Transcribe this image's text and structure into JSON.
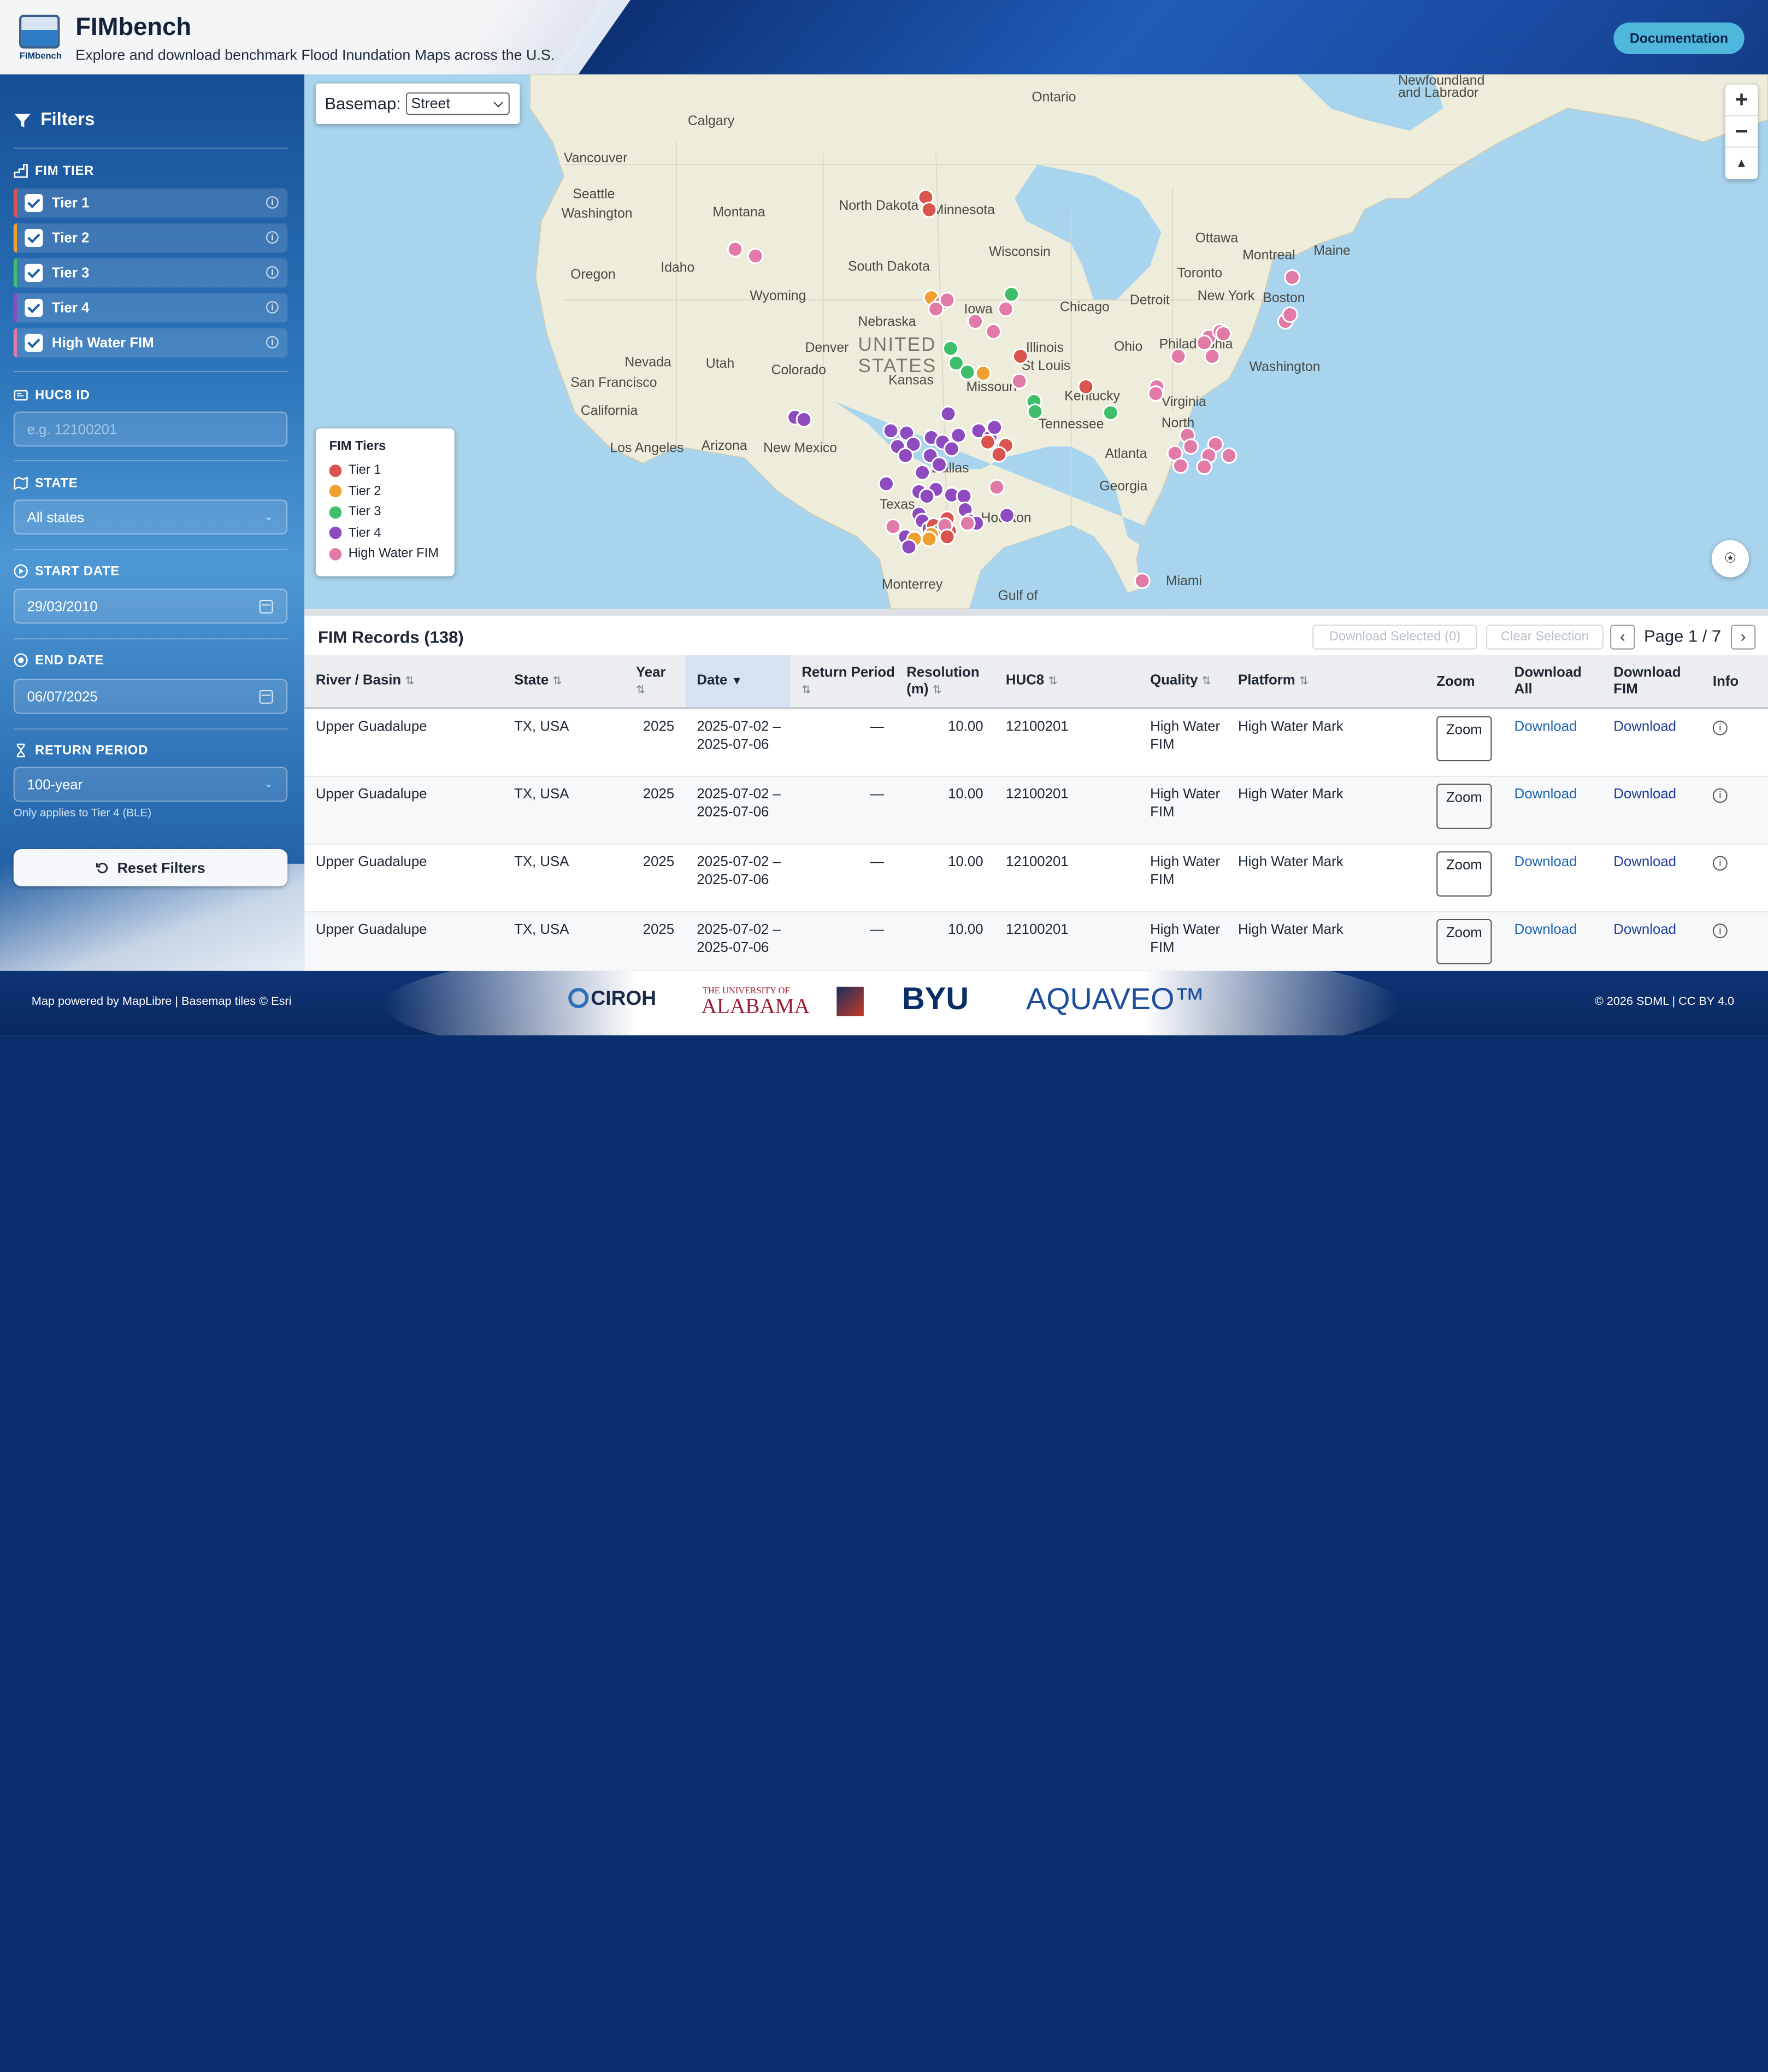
{
  "header": {
    "logo_text": "FIMbench",
    "title": "FIMbench",
    "subtitle": "Explore and download benchmark Flood Inundation Maps across the U.S.",
    "doc_button": "Documentation"
  },
  "sidebar": {
    "title": "Filters",
    "fim_tier_label": "FIM TIER",
    "tiers": [
      {
        "label": "Tier 1",
        "checked": true,
        "color": "#d9534f"
      },
      {
        "label": "Tier 2",
        "checked": true,
        "color": "#f0a030"
      },
      {
        "label": "Tier 3",
        "checked": true,
        "color": "#3fbf6a"
      },
      {
        "label": "Tier 4",
        "checked": true,
        "color": "#8e4bbf"
      },
      {
        "label": "High Water FIM",
        "checked": true,
        "color": "#e27aa8"
      }
    ],
    "huc8_label": "HUC8 ID",
    "huc8_placeholder": "e.g. 12100201",
    "state_label": "STATE",
    "state_value": "All states",
    "start_label": "START DATE",
    "start_value": "29/03/2010",
    "end_label": "END DATE",
    "end_value": "06/07/2025",
    "return_label": "RETURN PERIOD",
    "return_value": "100-year",
    "return_note": "Only applies to Tier 4 (BLE)",
    "reset_label": "Reset Filters"
  },
  "map": {
    "basemap_label": "Basemap:",
    "basemap_value": "Street",
    "zoom_in": "+",
    "zoom_out": "−",
    "compass": "▲",
    "place_labels": [
      "Calgary",
      "Vancouver",
      "Seattle",
      "Washington",
      "Oregon",
      "Idaho",
      "Montana",
      "Wyoming",
      "Nevada",
      "Utah",
      "Colorado",
      "San Francisco",
      "California",
      "Los Angeles",
      "Arizona",
      "New Mexico",
      "Denver",
      "North Dakota",
      "Minnesota",
      "South Dakota",
      "Nebraska",
      "UNITED",
      "STATES",
      "Kansas",
      "Iowa",
      "Missouri",
      "Wisconsin",
      "Chicago",
      "Detroit",
      "Ohio",
      "St Louis",
      "Kentucky",
      "Tennessee",
      "Atlanta",
      "Georgia",
      "Dallas",
      "Texas",
      "Monterrey",
      "Gulf of",
      "Miami",
      "Ontario",
      "Ottawa",
      "Montreal",
      "Toronto",
      "New York",
      "Boston",
      "Philadelphia",
      "Washington",
      "Virginia",
      "North",
      "Maine",
      "Newfoundland",
      "and Labrador",
      "Illinois",
      "Houston"
    ],
    "legend_title": "FIM Tiers",
    "legend_items": [
      "Tier 1",
      "Tier 2",
      "Tier 3",
      "Tier 4",
      "High Water FIM"
    ]
  },
  "records": {
    "title": "FIM Records (138)",
    "download_selected": "Download Selected (0)",
    "clear_selection": "Clear Selection",
    "prev": "‹",
    "next": "›",
    "page_text": "Page 1 / 7",
    "columns": [
      "River / Basin",
      "State",
      "Year",
      "Date",
      "Return Period",
      "Resolution (m)",
      "HUC8",
      "Quality",
      "Platform",
      "Zoom",
      "Download All",
      "Download FIM",
      "Info"
    ],
    "sort_glyph": "⇅",
    "sorted_glyph": "▼",
    "rows": [
      {
        "river": "Upper Guadalupe",
        "state": "TX, USA",
        "year": "2025",
        "date": "2025-07-02 – 2025-07-06",
        "rp": "—",
        "res": "10.00",
        "huc8": "12100201",
        "quality": "High Water FIM",
        "platform": "High Water Mark",
        "zoom": "Zoom",
        "dl_all": "Download",
        "dl_fim": "Download",
        "info": "i"
      },
      {
        "river": "Upper Guadalupe",
        "state": "TX, USA",
        "year": "2025",
        "date": "2025-07-02 – 2025-07-06",
        "rp": "—",
        "res": "10.00",
        "huc8": "12100201",
        "quality": "High Water FIM",
        "platform": "High Water Mark",
        "zoom": "Zoom",
        "dl_all": "Download",
        "dl_fim": "Download",
        "info": "i"
      },
      {
        "river": "Upper Guadalupe",
        "state": "TX, USA",
        "year": "2025",
        "date": "2025-07-02 – 2025-07-06",
        "rp": "—",
        "res": "10.00",
        "huc8": "12100201",
        "quality": "High Water FIM",
        "platform": "High Water Mark",
        "zoom": "Zoom",
        "dl_all": "Download",
        "dl_fim": "Download",
        "info": "i"
      },
      {
        "river": "Upper Guadalupe",
        "state": "TX, USA",
        "year": "2025",
        "date": "2025-07-02 – 2025-07-06",
        "rp": "—",
        "res": "10.00",
        "huc8": "12100201",
        "quality": "High Water FIM",
        "platform": "High Water Mark",
        "zoom": "Zoom",
        "dl_all": "Download",
        "dl_fim": "Download",
        "info": "i"
      }
    ]
  },
  "footer": {
    "left": "Map powered by MapLibre | Basemap tiles © Esri",
    "right": "© 2026 SDML | CC BY 4.0",
    "partners": [
      "CIROH",
      "THE UNIVERSITY OF",
      "ALABAMA",
      "BYU",
      "AQUAVEO™"
    ]
  }
}
